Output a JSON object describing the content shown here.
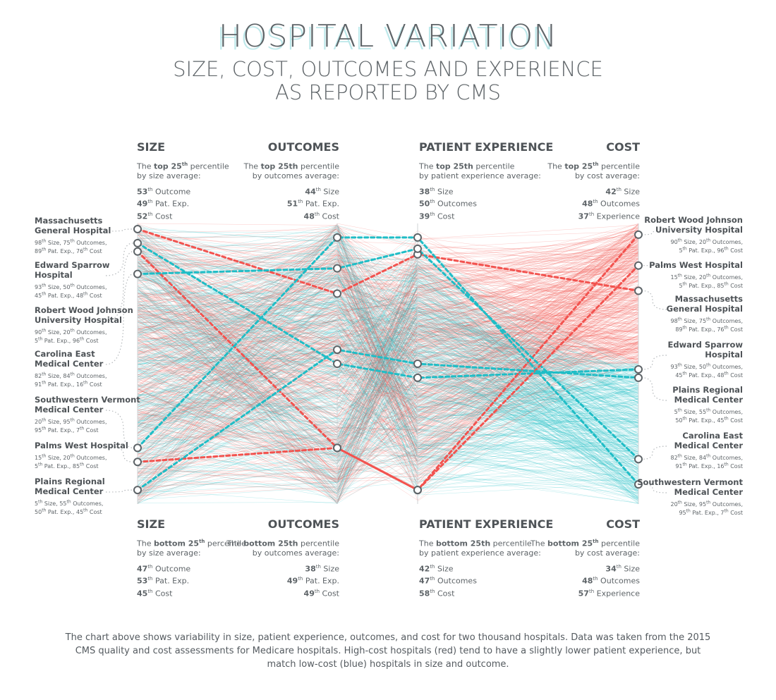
{
  "header": {
    "title": "HOSPITAL VARIATION",
    "subtitle_line1": "SIZE, COST, OUTCOMES AND EXPERIENCE",
    "subtitle_line2": "AS REPORTED BY CMS"
  },
  "top_panels": [
    {
      "axis": "SIZE",
      "pre": "The ",
      "bold": "top 25",
      "sup": "th",
      "post": " percentile",
      "line2": "by size average:",
      "stats": [
        {
          "n": "53",
          "sup": "th",
          "t": " Outcome"
        },
        {
          "n": "49",
          "sup": "th",
          "t": " Pat. Exp."
        },
        {
          "n": "52",
          "sup": "th",
          "t": " Cost"
        }
      ]
    },
    {
      "axis": "OUTCOMES",
      "pre": "The ",
      "bold": "top 25th",
      "sup": "",
      "post": " percentile",
      "line2": "by outcomes average:",
      "stats": [
        {
          "n": "44",
          "sup": "th",
          "t": " Size"
        },
        {
          "n": "51",
          "sup": "th",
          "t": " Pat. Exp."
        },
        {
          "n": "48",
          "sup": "th",
          "t": " Cost"
        }
      ]
    },
    {
      "axis": "PATIENT EXPERIENCE",
      "pre": "The ",
      "bold": "top 25th",
      "sup": "",
      "post": " percentile",
      "line2": "by patient experience average:",
      "stats": [
        {
          "n": "38",
          "sup": "th",
          "t": " Size"
        },
        {
          "n": "50",
          "sup": "th",
          "t": " Outcomes"
        },
        {
          "n": "39",
          "sup": "th",
          "t": " Cost"
        }
      ]
    },
    {
      "axis": "COST",
      "pre": "The ",
      "bold": "top 25",
      "sup": "th",
      "post": " percentile",
      "line2": "by cost average:",
      "stats": [
        {
          "n": "42",
          "sup": "th",
          "t": " Size"
        },
        {
          "n": "48",
          "sup": "th",
          "t": " Outcomes"
        },
        {
          "n": "37",
          "sup": "th",
          "t": " Experience"
        }
      ]
    }
  ],
  "bottom_panels": [
    {
      "axis": "SIZE",
      "pre": "The ",
      "bold": "bottom 25",
      "sup": "th",
      "post": " percentile",
      "line2": "by size average:",
      "stats": [
        {
          "n": "47",
          "sup": "th",
          "t": " Outcome"
        },
        {
          "n": "53",
          "sup": "th",
          "t": " Pat. Exp."
        },
        {
          "n": "45",
          "sup": "th",
          "t": " Cost"
        }
      ]
    },
    {
      "axis": "OUTCOMES",
      "pre": "The ",
      "bold": "bottom 25th",
      "sup": "",
      "post": " percentile",
      "line2": "by outcomes average:",
      "stats": [
        {
          "n": "38",
          "sup": "th",
          "t": " Size"
        },
        {
          "n": "49",
          "sup": "th",
          "t": " Pat. Exp."
        },
        {
          "n": "49",
          "sup": "th",
          "t": " Cost"
        }
      ]
    },
    {
      "axis": "PATIENT EXPERIENCE",
      "pre": "The ",
      "bold": "bottom 25th",
      "sup": "",
      "post": " percentile",
      "line2": "by patient experience average:",
      "stats": [
        {
          "n": "42",
          "sup": "th",
          "t": " Size"
        },
        {
          "n": "47",
          "sup": "th",
          "t": " Outcomes"
        },
        {
          "n": "58",
          "sup": "th",
          "t": " Cost"
        }
      ]
    },
    {
      "axis": "COST",
      "pre": "The ",
      "bold": "bottom 25",
      "sup": "th",
      "post": " percentile",
      "line2": "by cost average:",
      "stats": [
        {
          "n": "34",
          "sup": "th",
          "t": " Size"
        },
        {
          "n": "48",
          "sup": "th",
          "t": " Outcomes"
        },
        {
          "n": "57",
          "sup": "th",
          "t": " Experience"
        }
      ]
    }
  ],
  "left_labels": [
    {
      "name": [
        "Massachusetts",
        "General Hospital"
      ],
      "detail": [
        "98th Size, 75th Outcomes,",
        "89th Pat. Exp., 76th Cost"
      ]
    },
    {
      "name": [
        "Edward Sparrow",
        "Hospital"
      ],
      "detail": [
        "93th Size, 50th Outcomes,",
        "45th Pat. Exp., 48th Cost"
      ]
    },
    {
      "name": [
        "Robert Wood Johnson",
        "University Hospital"
      ],
      "detail": [
        "90th Size, 20th Outcomes,",
        "5th Pat. Exp., 96th Cost"
      ]
    },
    {
      "name": [
        "Carolina East",
        "Medical Center"
      ],
      "detail": [
        "82th Size, 84th Outcomes,",
        "91th Pat. Exp., 16th Cost"
      ]
    },
    {
      "name": [
        "Southwestern Vermont",
        "Medical Center"
      ],
      "detail": [
        "20th Size, 95th Outcomes,",
        "95th Pat. Exp., 7th Cost"
      ]
    },
    {
      "name": [
        "Palms West Hospital"
      ],
      "detail": [
        "15th Size, 20th Outcomes,",
        "5th Pat. Exp., 85th Cost"
      ]
    },
    {
      "name": [
        "Plains Regional",
        "Medical Center"
      ],
      "detail": [
        "5th Size, 55th Outcomes,",
        "50th Pat. Exp., 45th Cost"
      ]
    }
  ],
  "right_labels": [
    {
      "name": [
        "Robert Wood Johnson",
        "University Hospital"
      ],
      "detail": [
        "90th Size, 20th Outcomes,",
        "5th Pat. Exp., 96th Cost"
      ]
    },
    {
      "name": [
        "Palms West Hospital"
      ],
      "detail": [
        "15th Size, 20th Outcomes,",
        "5th Pat. Exp., 85th Cost"
      ]
    },
    {
      "name": [
        "Massachusetts",
        "General Hospital"
      ],
      "detail": [
        "98th Size, 75th Outcomes,",
        "89th Pat. Exp., 76th Cost"
      ]
    },
    {
      "name": [
        "Edward Sparrow",
        "Hospital"
      ],
      "detail": [
        "93th Size, 50th Outcomes,",
        "45th Pat. Exp., 48th Cost"
      ]
    },
    {
      "name": [
        "Plains Regional",
        "Medical Center"
      ],
      "detail": [
        "5th Size, 55th Outcomes,",
        "50th Pat. Exp., 45th Cost"
      ]
    },
    {
      "name": [
        "Carolina East",
        "Medical Center"
      ],
      "detail": [
        "82th Size, 84th Outcomes,",
        "91th Pat. Exp., 16th Cost"
      ]
    },
    {
      "name": [
        "Southwestern Vermont",
        "Medical Center"
      ],
      "detail": [
        "20th Size, 95th Outcomes,",
        "95th Pat. Exp., 7th Cost"
      ]
    }
  ],
  "caption": "The chart above shows variability in size, patient experience, outcomes, and cost for two thousand hospitals. Data was taken from the 2015 CMS quality and cost assessments for Medicare hospitals. High-cost hospitals (red) tend to have a slightly lower patient experience, but match low-cost (blue) hospitals in size and outcome.",
  "colors": {
    "high_cost": "#f2534f",
    "low_cost": "#1fbdc6",
    "node_stroke": "#5e6468",
    "text": "#555b60"
  },
  "chart_data": {
    "type": "parallel-coordinates",
    "axes": [
      "SIZE",
      "OUTCOMES",
      "PATIENT EXPERIENCE",
      "COST"
    ],
    "scale": "percentile, top = 100, bottom = 0",
    "hospital_count": "two thousand",
    "color_encoding": {
      "red": "High-cost hospitals",
      "blue": "low-cost hospitals"
    },
    "highlighted": [
      {
        "name": "Massachusetts General Hospital",
        "values": [
          98,
          75,
          89,
          76
        ],
        "color": "red"
      },
      {
        "name": "Edward Sparrow Hospital",
        "values": [
          93,
          50,
          45,
          48
        ],
        "color": "blue"
      },
      {
        "name": "Robert Wood Johnson University Hospital",
        "values": [
          90,
          20,
          5,
          96
        ],
        "color": "red"
      },
      {
        "name": "Carolina East Medical Center",
        "values": [
          82,
          84,
          91,
          16
        ],
        "color": "blue"
      },
      {
        "name": "Southwestern Vermont Medical Center",
        "values": [
          20,
          95,
          95,
          7
        ],
        "color": "blue"
      },
      {
        "name": "Palms West Hospital",
        "values": [
          15,
          20,
          5,
          85
        ],
        "color": "red"
      },
      {
        "name": "Plains Regional Medical Center",
        "values": [
          5,
          55,
          50,
          45
        ],
        "color": "blue"
      }
    ]
  }
}
